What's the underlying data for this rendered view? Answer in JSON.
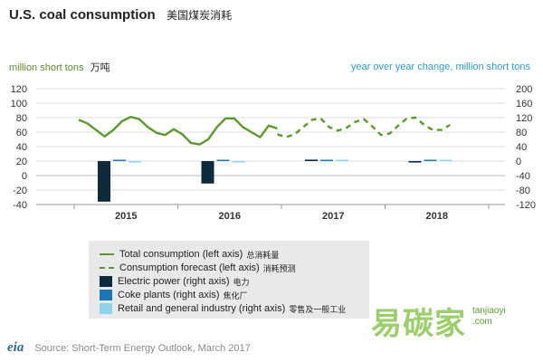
{
  "header": {
    "title": "U.S. coal consumption",
    "title_cn": "美国煤炭消耗"
  },
  "axes": {
    "left_unit": "million short tons",
    "left_unit_cn": "万吨",
    "right_unit": "year over year change, million short tons"
  },
  "legend": {
    "items": [
      {
        "label": "Total consumption (left axis)",
        "cn": "总消耗量",
        "swatch": "line",
        "color": "#5a9a2a"
      },
      {
        "label": "Consumption forecast (left axis)",
        "cn": "消耗预测",
        "swatch": "dash",
        "color": "#5a9a2a"
      },
      {
        "label": "Electric power (right axis)",
        "cn": "电力",
        "swatch": "box",
        "color": "#0d2a3e"
      },
      {
        "label": "Coke plants (right axis)",
        "cn": "焦化厂",
        "swatch": "box",
        "color": "#1a78b8"
      },
      {
        "label": "Retail and general industry (right axis)",
        "cn": "零售及一般工业",
        "swatch": "box",
        "color": "#8cd4ee"
      }
    ]
  },
  "footer": {
    "logo": "eia",
    "source": "Source: Short-Term Energy Outlook, March 2017"
  },
  "watermark": {
    "text_cn": "易碳家",
    "url_line1": "tanjiaoyi",
    "url_line2": ".com"
  },
  "colors": {
    "line": "#5a9a2a",
    "electric": "#0d2a3e",
    "coke": "#1a78b8",
    "retail": "#8cd4ee",
    "left_axis_text": "#5a8a2a",
    "right_axis_text": "#2a9ac7"
  },
  "chart_data": {
    "type": "line",
    "title": "U.S. coal consumption",
    "categories": [
      "2015",
      "2016",
      "2017",
      "2018"
    ],
    "left_axis": {
      "ylabel": "million short tons",
      "ylim": [
        -40,
        120
      ],
      "ticks": [
        -40,
        -20,
        0,
        20,
        40,
        60,
        80,
        100,
        120
      ]
    },
    "right_axis": {
      "ylabel": "year over year change, million short tons",
      "ylim": [
        -120,
        200
      ],
      "ticks": [
        -120,
        -80,
        -40,
        0,
        40,
        80,
        120,
        160,
        200
      ]
    },
    "line_series": [
      {
        "name": "Total consumption (left axis)",
        "style": "solid",
        "axis": "left",
        "values": [
          77,
          72,
          63,
          54,
          63,
          75,
          81,
          78,
          67,
          59,
          56,
          64,
          57,
          45,
          43,
          50,
          67,
          79,
          79,
          67,
          60,
          53,
          69,
          65
        ]
      },
      {
        "name": "Consumption forecast (left axis)",
        "style": "dashed",
        "axis": "left",
        "values": [
          57,
          53,
          57,
          67,
          77,
          79,
          67,
          62,
          66,
          74,
          78,
          68,
          56,
          58,
          69,
          79,
          80,
          70,
          63,
          63,
          70
        ]
      }
    ],
    "bar_series": [
      {
        "name": "Electric power (right axis)",
        "axis": "right",
        "values": [
          -112,
          -62,
          4,
          -4
        ]
      },
      {
        "name": "Coke plants (right axis)",
        "axis": "right",
        "values": [
          0,
          0,
          0,
          0
        ]
      },
      {
        "name": "Retail and general industry (right axis)",
        "axis": "right",
        "values": [
          -2,
          -2,
          0,
          0
        ]
      }
    ],
    "grid": true,
    "legend_position": "bottom"
  }
}
